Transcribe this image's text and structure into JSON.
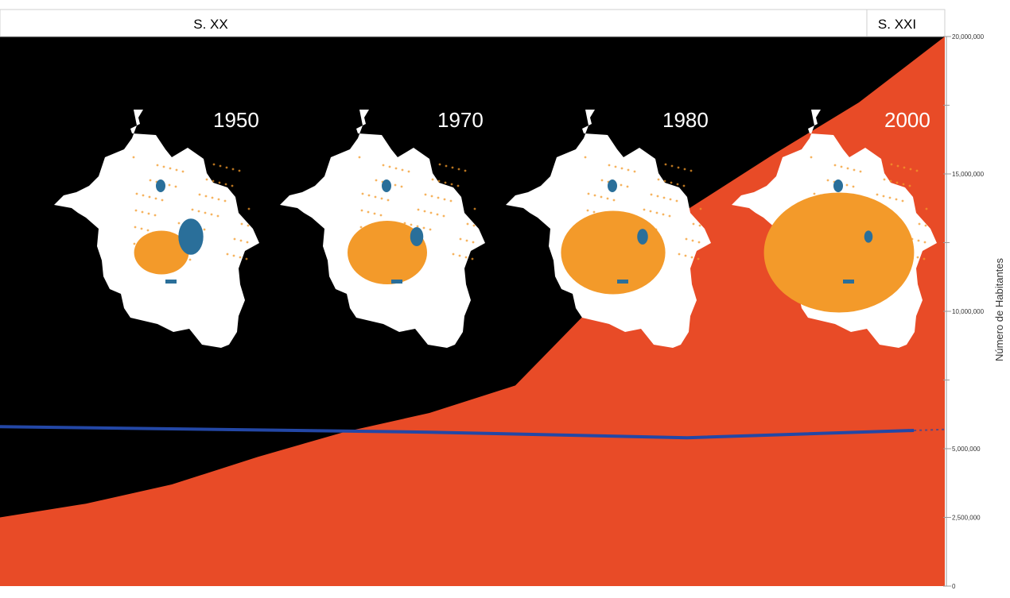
{
  "chart_data": {
    "type": "area",
    "title": "",
    "xlabel": "",
    "ylabel": "Número de Habitantes",
    "ylim": [
      0,
      20000000
    ],
    "y_ticks": [
      0,
      2500000,
      5000000,
      10000000,
      15000000,
      20000000
    ],
    "y_tick_labels": [
      "0",
      "2,500,000",
      "5,000,000",
      "10,000,000",
      "15,000,000",
      "20,000,000"
    ],
    "periods": [
      "S. XX",
      "S. XXI"
    ],
    "colors": {
      "population_area": "#e84b27",
      "background": "#000000",
      "line": "#2347a6",
      "urban_area": "#f39a2a",
      "water": "#2a6f9a",
      "map": "#ffffff"
    },
    "series": [
      {
        "type": "area",
        "x": [
          1900,
          1910,
          1920,
          1930,
          1940,
          1950,
          1960,
          1970,
          1980,
          1990,
          2000,
          2010
        ],
        "values": [
          2500000,
          3000000,
          3700000,
          4700000,
          5600000,
          6300000,
          7300000,
          10500000,
          13700000,
          15700000,
          17600000,
          20000000
        ]
      },
      {
        "type": "line",
        "x": [
          1900,
          1950,
          1980,
          2010
        ],
        "values": [
          5800000,
          5600000,
          5400000,
          5700000
        ]
      }
    ],
    "map_panels": [
      {
        "year_label": "1950",
        "urban_extent": 0.12,
        "lake_extent": 0.25
      },
      {
        "year_label": "1970",
        "urban_extent": 0.25,
        "lake_extent": 0.1
      },
      {
        "year_label": "1980",
        "urban_extent": 0.38,
        "lake_extent": 0.07
      },
      {
        "year_label": "2000",
        "urban_extent": 0.62,
        "lake_extent": 0.04
      }
    ]
  }
}
